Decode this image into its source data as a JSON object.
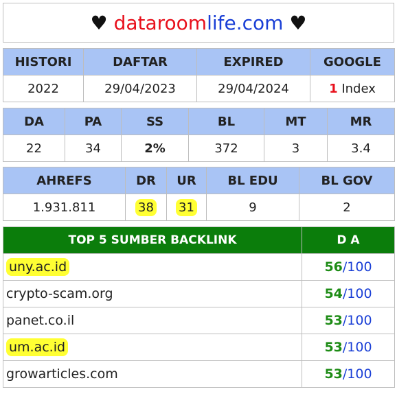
{
  "title": {
    "heart_left": "♥",
    "part1": "dataroom",
    "part2": "life.com",
    "heart_right": "♥"
  },
  "table1": {
    "headers": [
      "HISTORI",
      "DAFTAR",
      "EXPIRED",
      "GOOGLE"
    ],
    "values": {
      "histori": "2022",
      "daftar": "29/04/2023",
      "expired": "29/04/2024",
      "google_count": "1",
      "google_label": "Index"
    }
  },
  "table2": {
    "headers": [
      "DA",
      "PA",
      "SS",
      "BL",
      "MT",
      "MR"
    ],
    "values": [
      "22",
      "34",
      "2%",
      "372",
      "3",
      "3.4"
    ]
  },
  "table3": {
    "headers": [
      "AHREFS",
      "DR",
      "UR",
      "BL EDU",
      "BL GOV"
    ],
    "values": [
      "1.931.811",
      "38",
      "31",
      "9",
      "2"
    ]
  },
  "backlinks": {
    "header_source": "TOP 5 SUMBER BACKLINK",
    "header_da": "D A",
    "rows": [
      {
        "domain": "uny.ac.id",
        "da": "56",
        "max": "100",
        "highlight": true
      },
      {
        "domain": "crypto-scam.org",
        "da": "54",
        "max": "100",
        "highlight": false
      },
      {
        "domain": "panet.co.il",
        "da": "53",
        "max": "100",
        "highlight": false
      },
      {
        "domain": "um.ac.id",
        "da": "53",
        "max": "100",
        "highlight": true
      },
      {
        "domain": "growarticles.com",
        "da": "53",
        "max": "100",
        "highlight": false
      }
    ]
  },
  "colors": {
    "header_blue": "#a9c4f5",
    "header_green": "#0b7d0b",
    "accent_red": "#e8101c",
    "accent_blue": "#1a3fd6",
    "good_green": "#1e8c16",
    "highlight_yellow": "#ffff33"
  }
}
